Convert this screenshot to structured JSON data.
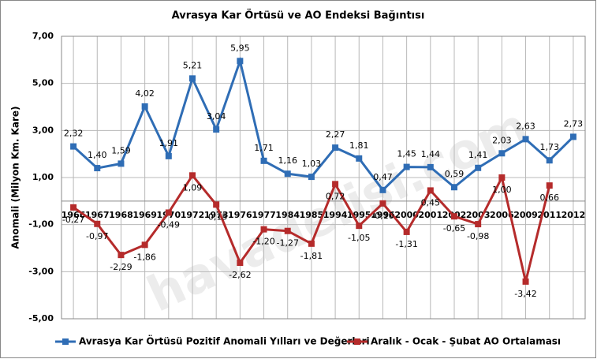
{
  "chart_data": {
    "type": "line",
    "title": "Avrasya Kar Örtüsü ve AO Endeksi Bağıntısı",
    "y_label": "Anomali (Milyon Km. Kare)",
    "watermark": "havadelisi.com",
    "categories": [
      "1966",
      "1967",
      "1968",
      "1969",
      "1970",
      "1972",
      "1973",
      "1976",
      "1977",
      "1984",
      "1985",
      "1994",
      "1995",
      "1996",
      "2000",
      "2001",
      "2002",
      "2003",
      "2006",
      "2009",
      "2011",
      "2012"
    ],
    "ylim": [
      -5,
      7
    ],
    "yticks": [
      {
        "value": -5,
        "label": "-5,00"
      },
      {
        "value": -3,
        "label": "-3,00"
      },
      {
        "value": -1,
        "label": "-1,00"
      },
      {
        "value": 1,
        "label": "1,00"
      },
      {
        "value": 3,
        "label": "3,00"
      },
      {
        "value": 5,
        "label": "5,00"
      },
      {
        "value": 7,
        "label": "7,00"
      }
    ],
    "grid": true,
    "series": [
      {
        "name": "Avrasya Kar Örtüsü Pozitif Anomali Yılları ve Değerleri",
        "color": "#2f6db5",
        "values": [
          2.32,
          1.4,
          1.59,
          4.02,
          1.91,
          5.21,
          3.04,
          5.95,
          1.71,
          1.16,
          1.03,
          2.27,
          1.81,
          0.47,
          1.45,
          1.44,
          0.59,
          1.41,
          2.03,
          2.63,
          1.73,
          2.73
        ],
        "value_labels": [
          "2,32",
          "1,40",
          "1,59",
          "4,02",
          "1,91",
          "5,21",
          "3,04",
          "5,95",
          "1,71",
          "1,16",
          "1,03",
          "2,27",
          "1,81",
          "0,47",
          "1,45",
          "1,44",
          "0,59",
          "1,41",
          "2,03",
          "2,63",
          "1,73",
          "2,73"
        ]
      },
      {
        "name": "Aralık - Ocak - Şubat AO Ortalaması",
        "color": "#b52b2b",
        "values": [
          -0.27,
          -0.97,
          -2.29,
          -1.86,
          -0.49,
          1.09,
          -0.15,
          -2.62,
          -1.2,
          -1.27,
          -1.81,
          0.72,
          -1.05,
          -0.1,
          -1.31,
          0.45,
          -0.65,
          -0.98,
          1.0,
          -3.42,
          0.66,
          null
        ],
        "value_labels": [
          "-0,27",
          "-0,97",
          "-2,29",
          "-1,86",
          "-0,49",
          "1,09",
          "-0,15",
          "-2,62",
          "-1,20",
          "-1,27",
          "-1,81",
          "0,72",
          "-1,05",
          "-0,10",
          "-1,31",
          "0,45",
          "-0,65",
          "-0,98",
          "1,00",
          "-3,42",
          "0,66",
          null
        ]
      }
    ]
  }
}
